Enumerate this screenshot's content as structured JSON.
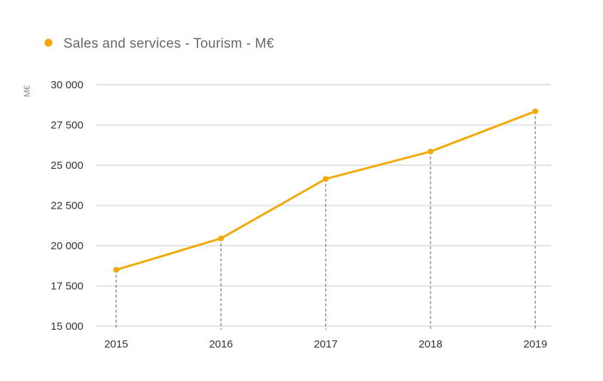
{
  "chart_data": {
    "type": "line",
    "title": "",
    "xlabel": "",
    "ylabel": "M€",
    "categories": [
      "2015",
      "2016",
      "2017",
      "2018",
      "2019"
    ],
    "series": [
      {
        "name": "Sales and services - Tourism - M€",
        "values": [
          18500,
          20450,
          24150,
          25850,
          28350
        ],
        "color": "#f5a800"
      }
    ],
    "ylim": [
      15000,
      30000
    ],
    "yticks": [
      15000,
      17500,
      20000,
      22500,
      25000,
      27500,
      30000
    ],
    "ytick_labels": [
      "15 000",
      "17 500",
      "20 000",
      "22 500",
      "25 000",
      "27 500",
      "30 000"
    ],
    "grid": true,
    "drop_lines": true,
    "legend_position": "top-left"
  }
}
